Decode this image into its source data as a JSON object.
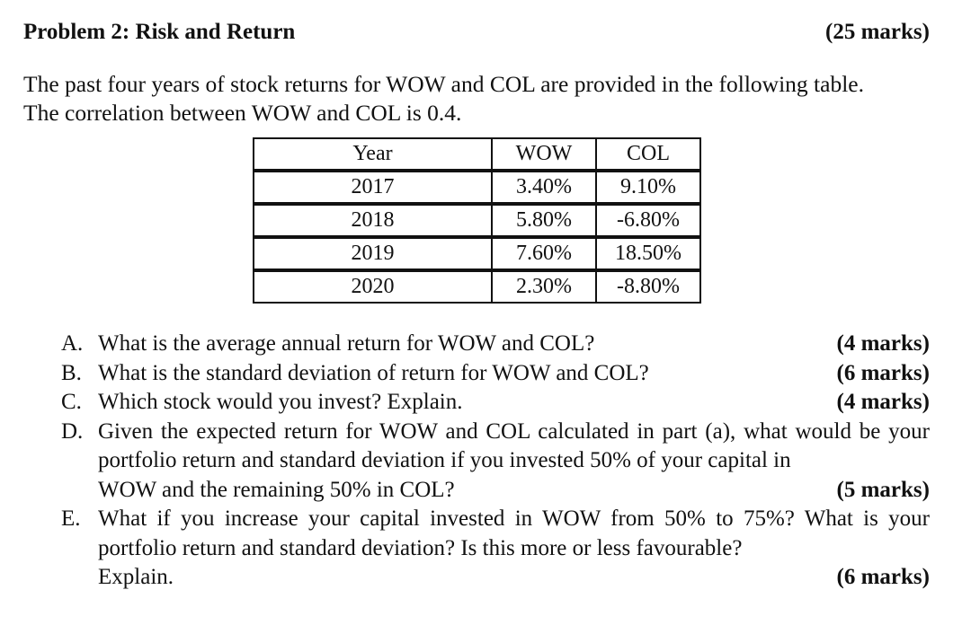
{
  "header": {
    "title": "Problem 2: Risk and Return",
    "marks": "(25 marks)"
  },
  "intro": {
    "line1": "The past four years of stock returns for WOW and COL are provided in the following table.",
    "line2": "The correlation between WOW and COL is 0.4."
  },
  "table": {
    "headers": [
      "Year",
      "WOW",
      "COL"
    ],
    "rows": [
      [
        "2017",
        "3.40%",
        "9.10%"
      ],
      [
        "2018",
        "5.80%",
        "-6.80%"
      ],
      [
        "2019",
        "7.60%",
        "18.50%"
      ],
      [
        "2020",
        "2.30%",
        "-8.80%"
      ]
    ]
  },
  "questions": [
    {
      "letter": "A.",
      "text": "What is the average annual return for WOW and COL?",
      "marks": "(4 marks)"
    },
    {
      "letter": "B.",
      "text": "What is the standard deviation of return for WOW and COL?",
      "marks": "(6 marks)"
    },
    {
      "letter": "C.",
      "text": "Which stock would you invest? Explain.",
      "marks": "(4 marks)"
    },
    {
      "letter": "D.",
      "text": "Given the expected return for WOW and COL calculated in part (a), what would be your portfolio return and standard deviation if you invested 50% of your capital in",
      "last": "WOW and the remaining 50% in COL?",
      "marks": "(5 marks)"
    },
    {
      "letter": "E.",
      "text": "What if you increase your capital invested in WOW from 50% to 75%? What is your portfolio return and standard deviation? Is this more or less favourable?",
      "last": "Explain.",
      "marks": "(6 marks)"
    }
  ]
}
